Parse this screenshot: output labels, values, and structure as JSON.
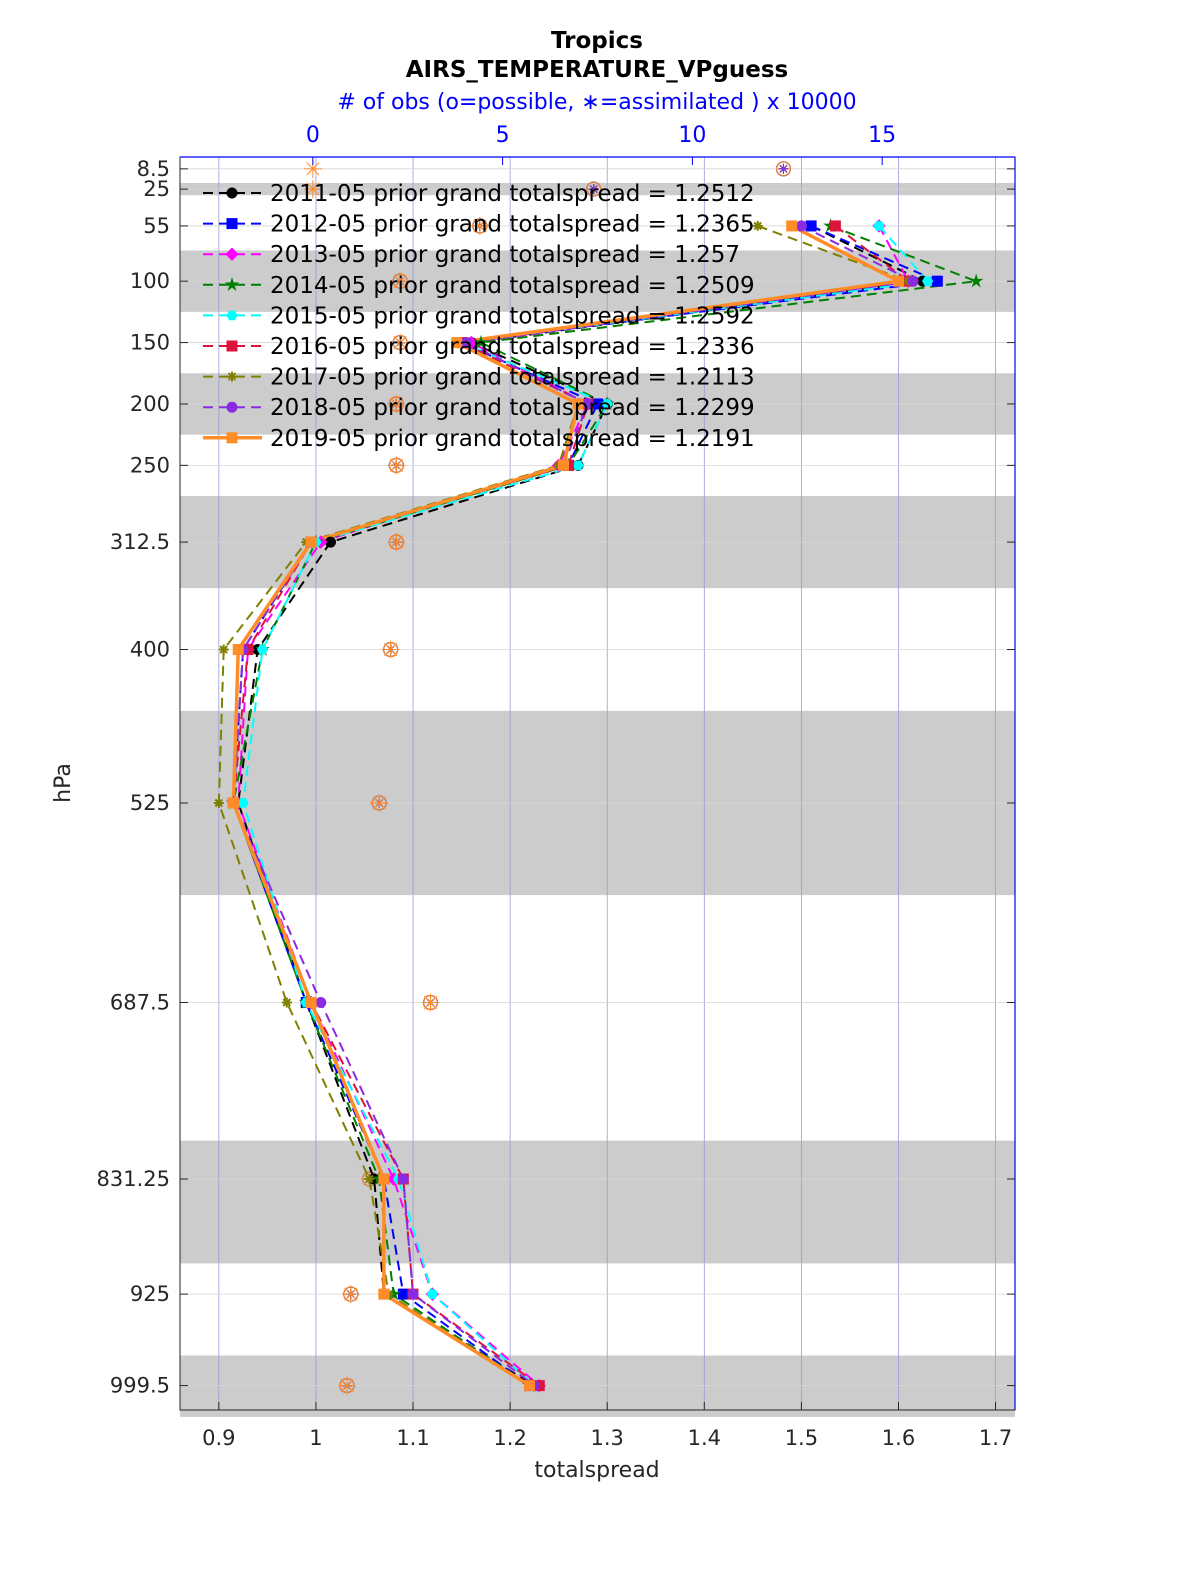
{
  "chart_data": {
    "type": "line",
    "title": "Tropics",
    "subtitle": "AIRS_TEMPERATURE_VPguess",
    "top_axis_label": "# of obs (o=possible, ∗=assimilated ) x 10000",
    "xlabel": "totalspread",
    "ylabel": "hPa",
    "xlim": [
      0.86,
      1.72
    ],
    "x_ticks": [
      "0.9",
      "1",
      "1.1",
      "1.2",
      "1.3",
      "1.4",
      "1.5",
      "1.6",
      "1.7"
    ],
    "top_xlim": [
      -3.5,
      18.5
    ],
    "top_ticks": [
      "0",
      "5",
      "10",
      "15"
    ],
    "y_reversed": true,
    "grid": true,
    "legend_position": "top-left",
    "levels": [
      8.5,
      25,
      55,
      100,
      150,
      200,
      250,
      312.5,
      400,
      525,
      687.5,
      831.25,
      925,
      999.5
    ],
    "level_labels": [
      "8.5",
      "25",
      "55",
      "100",
      "150",
      "200",
      "250",
      "312.5",
      "400",
      "525",
      "687.5",
      "831.25",
      "925",
      "999.5"
    ],
    "shaded_layers_hPa": [
      [
        20,
        30
      ],
      [
        75,
        125
      ],
      [
        175,
        225
      ],
      [
        275,
        350
      ],
      [
        450,
        600
      ],
      [
        800,
        900
      ],
      [
        975,
        1025
      ]
    ],
    "series": [
      {
        "name": "2011-05 prior grand totalspread = 1.2512",
        "color": "#000000",
        "marker": "circle",
        "dash": "dashed",
        "values": [
          null,
          null,
          1.51,
          1.625,
          1.16,
          1.3,
          1.27,
          1.015,
          0.94,
          0.92,
          0.99,
          1.06,
          1.07,
          1.225
        ]
      },
      {
        "name": "2012-05 prior grand totalspread = 1.2365",
        "color": "#0000ff",
        "marker": "square",
        "dash": "dashed",
        "values": [
          null,
          null,
          1.51,
          1.64,
          1.15,
          1.29,
          1.26,
          0.995,
          0.925,
          0.915,
          0.99,
          1.07,
          1.09,
          1.22
        ]
      },
      {
        "name": "2013-05 prior grand totalspread = 1.257",
        "color": "#ff00ff",
        "marker": "diamond",
        "dash": "dashed",
        "values": [
          null,
          null,
          1.58,
          1.61,
          1.16,
          1.28,
          1.25,
          1.005,
          0.93,
          0.92,
          0.995,
          1.08,
          1.12,
          1.23
        ]
      },
      {
        "name": "2014-05 prior grand totalspread = 1.2509",
        "color": "#008000",
        "marker": "star",
        "dash": "dashed",
        "values": [
          null,
          null,
          1.53,
          1.68,
          1.17,
          1.3,
          1.26,
          1.0,
          0.945,
          0.915,
          0.99,
          1.065,
          1.08,
          1.22
        ]
      },
      {
        "name": "2015-05 prior grand totalspread = 1.2592",
        "color": "#00ffff",
        "marker": "hexagon",
        "dash": "dashed",
        "values": [
          null,
          null,
          1.58,
          1.63,
          1.15,
          1.3,
          1.27,
          1.0,
          0.945,
          0.925,
          0.99,
          1.085,
          1.12,
          1.225
        ]
      },
      {
        "name": "2016-05 prior grand totalspread = 1.2336",
        "color": "#dc143c",
        "marker": "square",
        "dash": "dashed",
        "values": [
          null,
          null,
          1.535,
          1.61,
          1.15,
          1.28,
          1.26,
          0.995,
          0.93,
          0.915,
          0.995,
          1.09,
          1.1,
          1.23
        ]
      },
      {
        "name": "2017-05 prior grand totalspread = 1.2113",
        "color": "#808000",
        "marker": "asterisk",
        "dash": "dashed",
        "values": [
          null,
          null,
          1.455,
          1.61,
          1.145,
          1.27,
          1.25,
          0.99,
          0.905,
          0.9,
          0.97,
          1.055,
          1.075,
          1.22
        ]
      },
      {
        "name": "2018-05 prior grand totalspread = 1.2299",
        "color": "#8a2be2",
        "marker": "circle",
        "dash": "dashed",
        "values": [
          null,
          null,
          1.5,
          1.615,
          1.155,
          1.28,
          1.255,
          0.995,
          0.925,
          0.915,
          1.005,
          1.09,
          1.1,
          1.225
        ]
      },
      {
        "name": "2019-05 prior grand totalspread = 1.2191",
        "color": "#ff8c28",
        "marker": "square",
        "dash": "solid",
        "values": [
          null,
          null,
          1.49,
          1.6,
          1.145,
          1.27,
          1.255,
          0.995,
          0.92,
          0.915,
          0.995,
          1.07,
          1.07,
          1.22
        ]
      }
    ],
    "obs_possible_x10000": [
      12.4,
      7.4,
      4.4,
      2.3,
      2.3,
      2.2,
      2.2,
      2.2,
      2.05,
      1.75,
      3.1,
      1.5,
      1.0,
      0.9
    ],
    "obs_assimilated_x10000": [
      12.4,
      7.4,
      4.4,
      2.3,
      2.3,
      2.2,
      2.2,
      2.2,
      2.05,
      1.75,
      3.1,
      1.5,
      1.0,
      0.9
    ],
    "obs_assimilated_2019_x10000": [
      0.0,
      0.0,
      4.4,
      2.3,
      2.3,
      2.2,
      2.2,
      2.2,
      2.05,
      1.75,
      3.1,
      1.5,
      1.0,
      0.9
    ]
  }
}
